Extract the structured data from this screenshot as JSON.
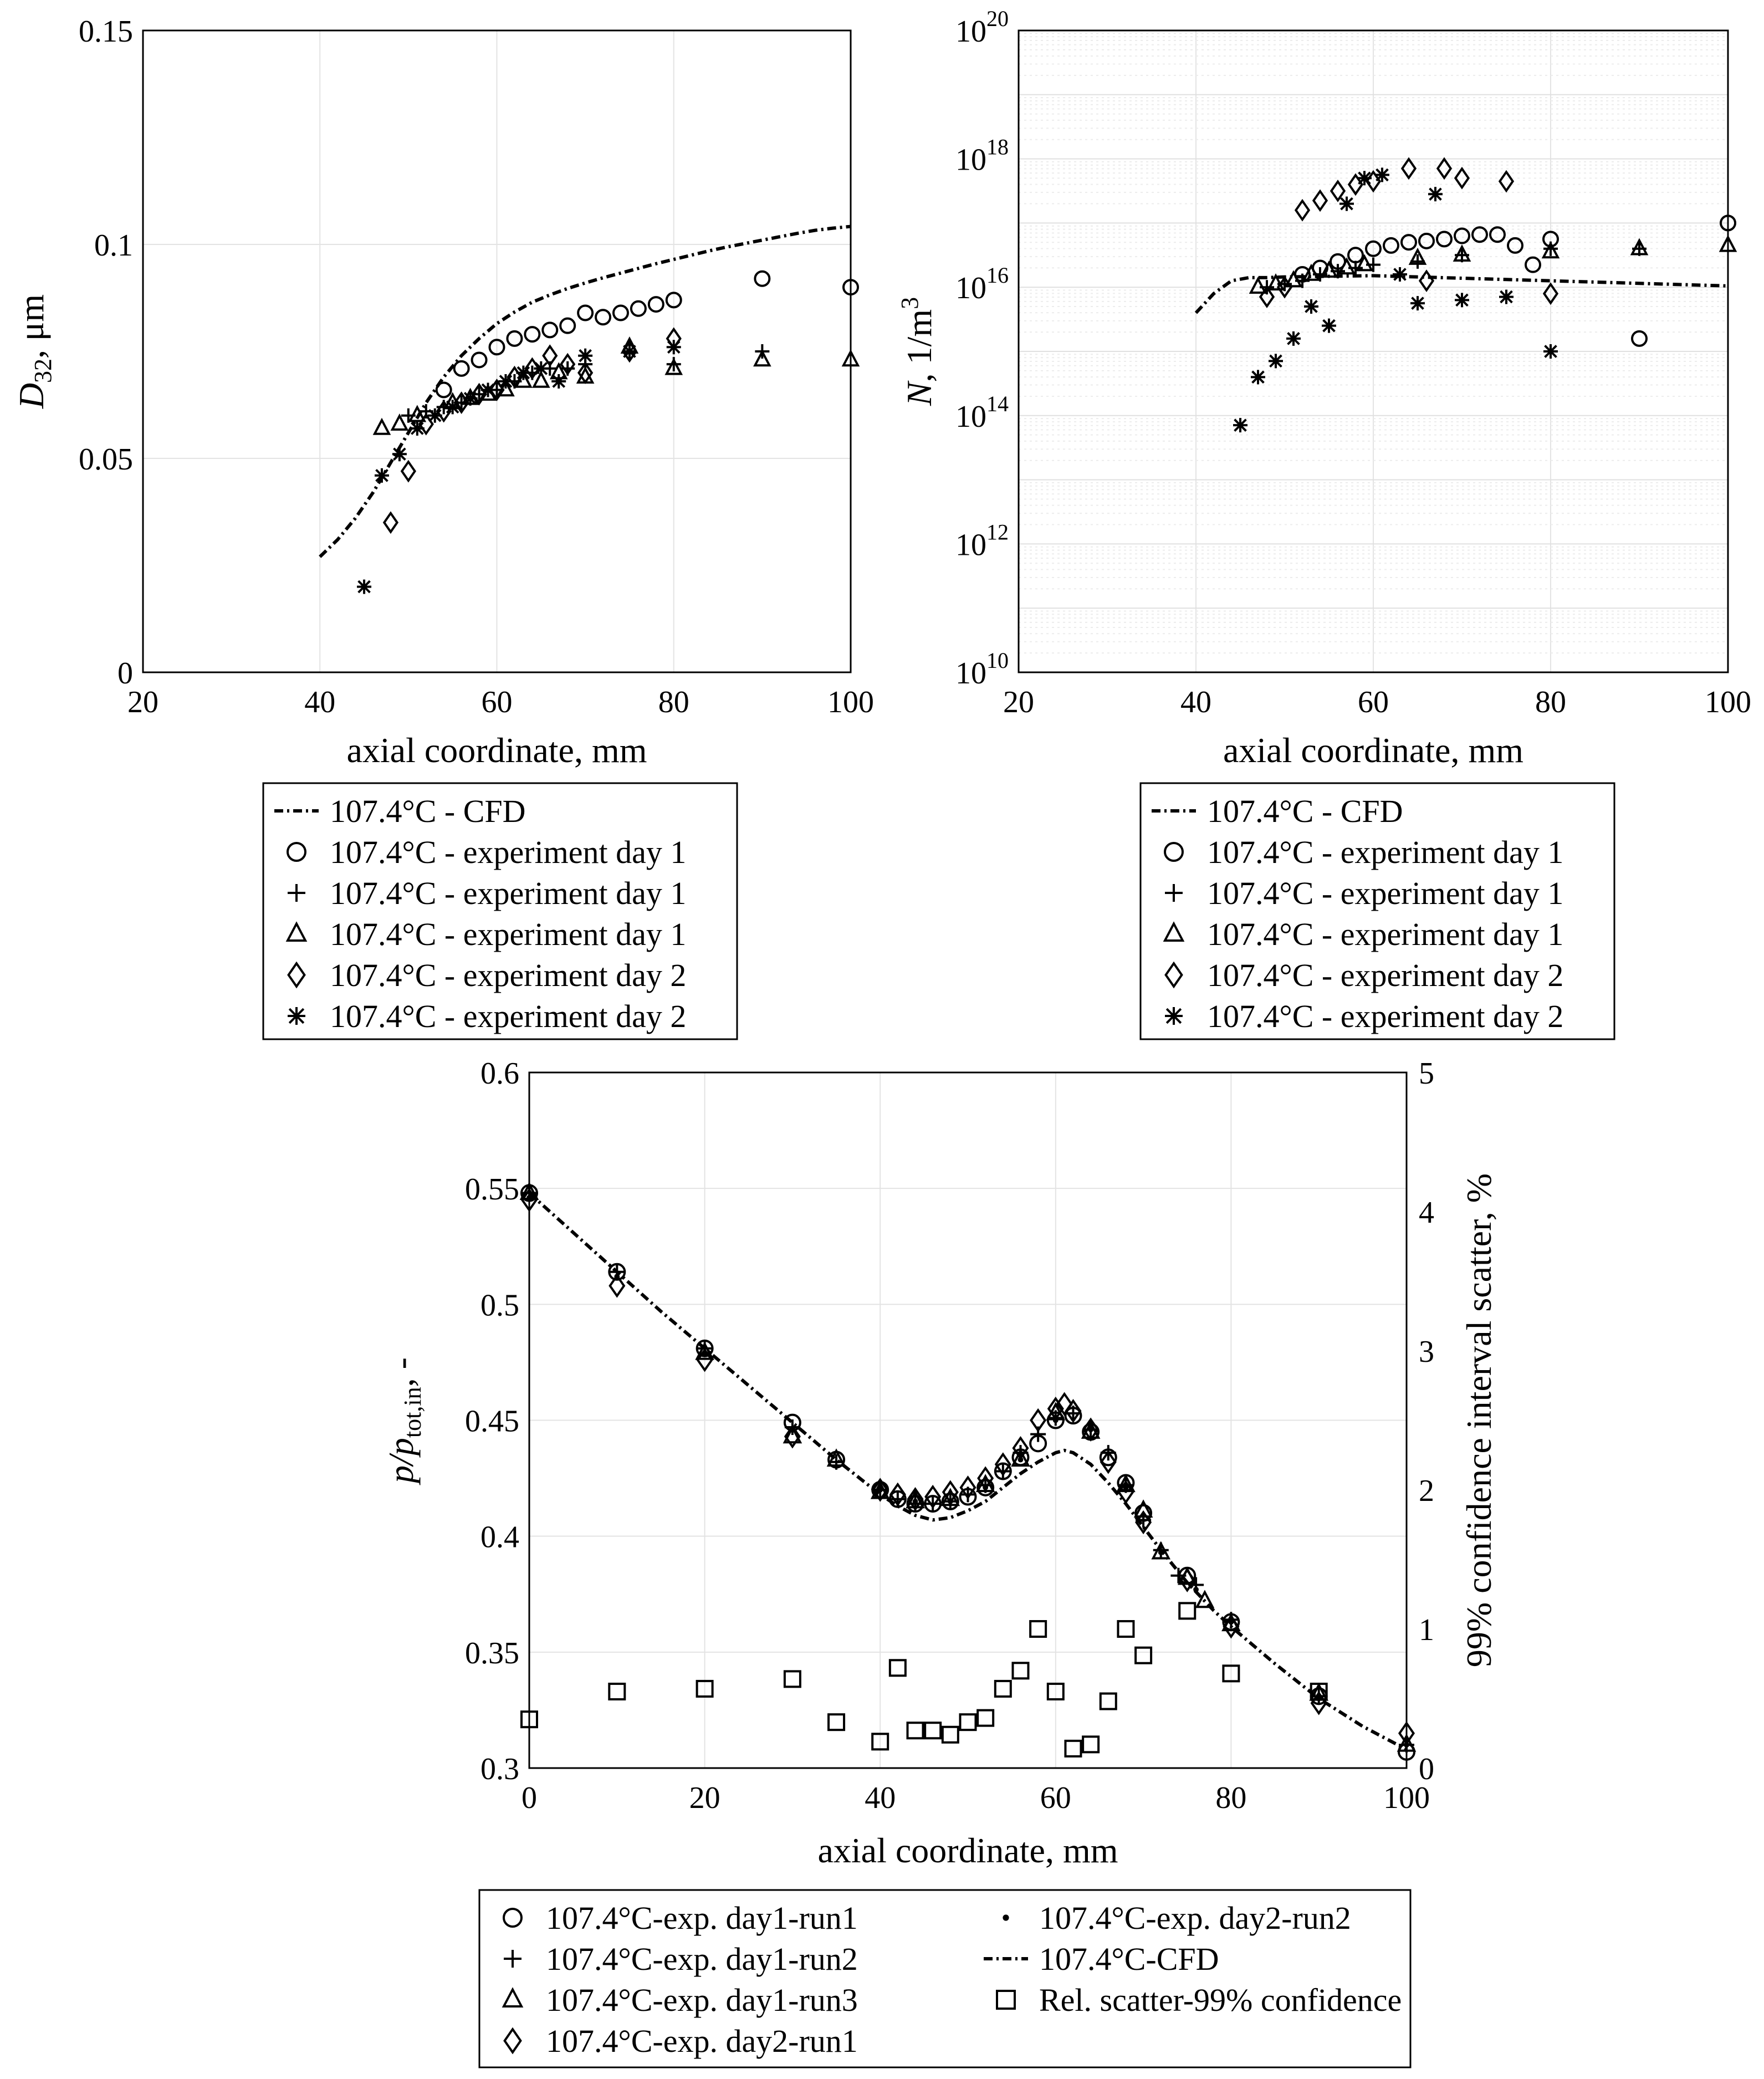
{
  "chart_data": [
    {
      "id": "d32",
      "type": "scatter",
      "ylabel_main": "D",
      "ylabel_sub": "32",
      "ylabel_rest": ", μm",
      "xlabel": "axial coordinate, mm",
      "xlim": [
        20,
        100
      ],
      "ylim": [
        0,
        0.15
      ],
      "xticks": [
        20,
        40,
        60,
        80,
        100
      ],
      "yticks": [
        0,
        0.05,
        0.1,
        0.15
      ],
      "ytick_labels": [
        "0",
        "0.05",
        "0.1",
        "0.15"
      ],
      "grid": true,
      "legend_position": "below",
      "series": [
        {
          "name": "107.4°C - CFD",
          "marker": "line",
          "x": [
            40,
            42,
            44,
            46,
            48,
            50,
            52,
            54,
            56,
            58,
            60,
            62,
            64,
            66,
            68,
            70,
            72,
            74,
            76,
            78,
            80,
            82,
            84,
            86,
            88,
            90,
            92,
            94,
            96,
            98,
            100
          ],
          "y": [
            0.027,
            0.031,
            0.036,
            0.042,
            0.049,
            0.056,
            0.063,
            0.069,
            0.074,
            0.078,
            0.0815,
            0.0842,
            0.0865,
            0.0882,
            0.0897,
            0.091,
            0.0922,
            0.0933,
            0.0944,
            0.0955,
            0.0965,
            0.0975,
            0.0985,
            0.0994,
            0.1002,
            0.101,
            0.1018,
            0.1026,
            0.1033,
            0.1038,
            0.1042
          ]
        },
        {
          "name": "107.4°C - experiment day 1",
          "marker": "circle",
          "x": [
            54,
            56,
            58,
            60,
            62,
            64,
            66,
            68,
            70,
            72,
            74,
            76,
            78,
            80,
            90,
            100
          ],
          "y": [
            0.066,
            0.071,
            0.073,
            0.076,
            0.078,
            0.079,
            0.08,
            0.081,
            0.084,
            0.083,
            0.084,
            0.085,
            0.086,
            0.087,
            0.092,
            0.09
          ]
        },
        {
          "name": "107.4°C - experiment day 1",
          "marker": "plus",
          "x": [
            50,
            52,
            54,
            56,
            58,
            60,
            62,
            64,
            66,
            68,
            70,
            75,
            80,
            90
          ],
          "y": [
            0.06,
            0.061,
            0.062,
            0.063,
            0.065,
            0.066,
            0.068,
            0.07,
            0.071,
            0.071,
            0.072,
            0.075,
            0.072,
            0.075
          ]
        },
        {
          "name": "107.4°C - experiment day 1",
          "marker": "triangle",
          "x": [
            47,
            49,
            51,
            55,
            57,
            59,
            61,
            63,
            65,
            67,
            70,
            75,
            80,
            90,
            100
          ],
          "y": [
            0.057,
            0.058,
            0.06,
            0.063,
            0.064,
            0.065,
            0.066,
            0.068,
            0.068,
            0.07,
            0.069,
            0.076,
            0.071,
            0.073,
            0.073
          ]
        },
        {
          "name": "107.4°C - experiment day 2",
          "marker": "diamond",
          "x": [
            48,
            50,
            52,
            54,
            56,
            58,
            60,
            62,
            64,
            66,
            68,
            70,
            75,
            80
          ],
          "y": [
            0.035,
            0.047,
            0.058,
            0.061,
            0.063,
            0.065,
            0.066,
            0.069,
            0.071,
            0.074,
            0.072,
            0.07,
            0.075,
            0.078
          ]
        },
        {
          "name": "107.4°C - experiment day 2",
          "marker": "star",
          "x": [
            45,
            47,
            49,
            51,
            53,
            55,
            57,
            59,
            61,
            63,
            65,
            67,
            70,
            75,
            80
          ],
          "y": [
            0.02,
            0.046,
            0.051,
            0.057,
            0.06,
            0.062,
            0.064,
            0.066,
            0.068,
            0.07,
            0.071,
            0.068,
            0.074,
            0.075,
            0.076
          ]
        }
      ]
    },
    {
      "id": "number_density",
      "type": "scatter",
      "yscale": "log",
      "ylabel_main": "N",
      "ylabel_rest": ", 1/m",
      "ylabel_sup": "3",
      "xlabel": "axial coordinate, mm",
      "xlim": [
        20,
        100
      ],
      "ylim_exp10": [
        10,
        20
      ],
      "xticks": [
        20,
        40,
        60,
        80,
        100
      ],
      "ytick_exponents": [
        10,
        12,
        14,
        16,
        18,
        20
      ],
      "grid": true,
      "legend_position": "below",
      "series": [
        {
          "name": "107.4°C - CFD",
          "marker": "line",
          "x": [
            40,
            42,
            44,
            46,
            48,
            50,
            55,
            60,
            65,
            70,
            75,
            80,
            85,
            90,
            95,
            100
          ],
          "log10y": [
            15.6,
            15.9,
            16.1,
            16.15,
            16.15,
            16.16,
            16.17,
            16.18,
            16.16,
            16.14,
            16.12,
            16.1,
            16.08,
            16.06,
            16.04,
            16.02
          ]
        },
        {
          "name": "107.4°C - experiment day 1",
          "marker": "circle",
          "x": [
            52,
            54,
            56,
            58,
            60,
            62,
            64,
            66,
            68,
            70,
            72,
            74,
            76,
            78,
            80,
            90,
            100
          ],
          "log10y": [
            16.2,
            16.3,
            16.4,
            16.5,
            16.6,
            16.65,
            16.7,
            16.72,
            16.75,
            16.8,
            16.82,
            16.82,
            16.65,
            16.35,
            16.75,
            15.2,
            17.0
          ]
        },
        {
          "name": "107.4°C - experiment day 1",
          "marker": "plus",
          "x": [
            48,
            50,
            52,
            54,
            56,
            58,
            60,
            65,
            70,
            80,
            90
          ],
          "log10y": [
            16.0,
            16.05,
            16.1,
            16.2,
            16.25,
            16.3,
            16.35,
            16.4,
            16.5,
            16.6,
            16.6
          ]
        },
        {
          "name": "107.4°C - experiment day 1",
          "marker": "triangle",
          "x": [
            47,
            49,
            51,
            53,
            55,
            57,
            59,
            65,
            70,
            80,
            90,
            100
          ],
          "log10y": [
            16.0,
            16.05,
            16.1,
            16.2,
            16.25,
            16.3,
            16.35,
            16.45,
            16.5,
            16.55,
            16.6,
            16.65
          ]
        },
        {
          "name": "107.4°C - experiment day 2",
          "marker": "diamond",
          "x": [
            48,
            50,
            52,
            54,
            56,
            58,
            60,
            64,
            66,
            68,
            70,
            75,
            80
          ],
          "log10y": [
            15.85,
            16.0,
            17.2,
            17.35,
            17.5,
            17.6,
            17.65,
            17.85,
            16.1,
            17.85,
            17.7,
            17.65,
            15.9
          ]
        },
        {
          "name": "107.4°C - experiment day 2",
          "marker": "star",
          "x": [
            45,
            47,
            49,
            51,
            53,
            55,
            57,
            59,
            61,
            63,
            65,
            67,
            70,
            75,
            80
          ],
          "log10y": [
            13.85,
            14.6,
            14.85,
            15.2,
            15.7,
            15.4,
            17.3,
            17.7,
            17.75,
            16.2,
            15.75,
            17.45,
            15.8,
            15.85,
            15.0
          ]
        }
      ]
    },
    {
      "id": "pressure",
      "type": "scatter",
      "ylabel_main": "p/p",
      "ylabel_sub": "tot,in",
      "ylabel_rest": ", -",
      "y2label": "99% confidence interval scatter, %",
      "xlabel": "axial coordinate, mm",
      "xlim": [
        0,
        100
      ],
      "ylim": [
        0.3,
        0.6
      ],
      "y2lim": [
        0,
        5
      ],
      "xticks": [
        0,
        20,
        40,
        60,
        80,
        100
      ],
      "yticks": [
        0.3,
        0.35,
        0.4,
        0.45,
        0.5,
        0.55,
        0.6
      ],
      "ytick_labels": [
        "0.3",
        "0.35",
        "0.4",
        "0.45",
        "0.5",
        "0.55",
        "0.6"
      ],
      "y2ticks": [
        0,
        1,
        2,
        3,
        4,
        5
      ],
      "grid": true,
      "legend_position": "below",
      "series": [
        {
          "name": "107.4°C-exp. day1-run1",
          "marker": "circle",
          "x": [
            0,
            10,
            20,
            30,
            35,
            40,
            42,
            44,
            46,
            48,
            50,
            52,
            54,
            56,
            58,
            60,
            62,
            64,
            66,
            68,
            70,
            75,
            80,
            90,
            100
          ],
          "y": [
            0.548,
            0.514,
            0.481,
            0.449,
            0.433,
            0.42,
            0.416,
            0.414,
            0.414,
            0.415,
            0.417,
            0.421,
            0.428,
            0.434,
            0.44,
            0.45,
            0.452,
            0.445,
            0.434,
            0.423,
            0.41,
            0.383,
            0.363,
            0.331,
            0.307
          ]
        },
        {
          "name": "107.4°C-exp. day1-run2",
          "marker": "plus",
          "x": [
            0,
            10,
            20,
            30,
            35,
            40,
            42,
            44,
            46,
            48,
            50,
            52,
            54,
            56,
            58,
            60,
            62,
            64,
            66,
            68,
            70,
            72,
            74,
            76,
            80,
            90,
            100
          ],
          "y": [
            0.548,
            0.514,
            0.481,
            0.447,
            0.432,
            0.42,
            0.416,
            0.414,
            0.414,
            0.415,
            0.418,
            0.422,
            0.428,
            0.436,
            0.444,
            0.451,
            0.453,
            0.446,
            0.436,
            0.422,
            0.407,
            0.394,
            0.383,
            0.379,
            0.364,
            0.331,
            0.31
          ]
        },
        {
          "name": "107.4°C-exp. day1-run3",
          "marker": "triangle",
          "x": [
            0,
            20,
            30,
            35,
            40,
            44,
            48,
            52,
            56,
            60,
            64,
            68,
            70,
            72,
            75,
            77,
            80,
            90,
            100
          ],
          "y": [
            0.548,
            0.479,
            0.443,
            0.433,
            0.419,
            0.415,
            0.416,
            0.422,
            0.433,
            0.453,
            0.445,
            0.422,
            0.411,
            0.393,
            0.382,
            0.372,
            0.362,
            0.332,
            0.31
          ]
        },
        {
          "name": "107.4°C-exp. day2-run1",
          "marker": "diamond",
          "x": [
            0,
            10,
            20,
            30,
            40,
            42,
            44,
            46,
            48,
            50,
            52,
            54,
            56,
            58,
            60,
            61,
            62,
            64,
            66,
            68,
            70,
            75,
            80,
            90,
            100
          ],
          "y": [
            0.545,
            0.508,
            0.476,
            0.443,
            0.42,
            0.418,
            0.416,
            0.417,
            0.419,
            0.421,
            0.425,
            0.431,
            0.438,
            0.45,
            0.455,
            0.457,
            0.454,
            0.446,
            0.432,
            0.419,
            0.406,
            0.381,
            0.361,
            0.328,
            0.315
          ]
        },
        {
          "name": "107.4°C-exp. day2-run2",
          "marker": "dot",
          "x": [
            0,
            10,
            20,
            30,
            40,
            44,
            48,
            52,
            56,
            60,
            64,
            68,
            72,
            76,
            80,
            90,
            100
          ],
          "y": [
            0.546,
            0.512,
            0.479,
            0.446,
            0.42,
            0.415,
            0.415,
            0.421,
            0.433,
            0.45,
            0.446,
            0.421,
            0.393,
            0.377,
            0.363,
            0.33,
            0.31
          ]
        },
        {
          "name": "107.4°C-CFD",
          "marker": "line",
          "x": [
            0,
            5,
            10,
            15,
            20,
            25,
            30,
            35,
            38,
            40,
            42,
            44,
            46,
            48,
            50,
            52,
            54,
            56,
            58,
            60,
            61,
            62,
            64,
            66,
            68,
            70,
            72,
            75,
            78,
            80,
            85,
            90,
            95,
            100
          ],
          "y": [
            0.548,
            0.531,
            0.514,
            0.497,
            0.481,
            0.465,
            0.449,
            0.433,
            0.424,
            0.418,
            0.413,
            0.409,
            0.407,
            0.408,
            0.411,
            0.415,
            0.421,
            0.427,
            0.432,
            0.436,
            0.437,
            0.436,
            0.431,
            0.423,
            0.414,
            0.404,
            0.394,
            0.38,
            0.368,
            0.361,
            0.345,
            0.33,
            0.318,
            0.308
          ]
        },
        {
          "name": "Rel. scatter-99% confidence",
          "marker": "square",
          "axis": "right",
          "x": [
            0,
            10,
            20,
            30,
            35,
            40,
            42,
            44,
            46,
            48,
            50,
            52,
            54,
            56,
            58,
            60,
            62,
            64,
            66,
            68,
            70,
            75,
            80,
            90
          ],
          "y": [
            0.35,
            0.55,
            0.57,
            0.64,
            0.33,
            0.19,
            0.72,
            0.27,
            0.27,
            0.24,
            0.33,
            0.36,
            0.57,
            0.7,
            1.0,
            0.55,
            0.14,
            0.17,
            0.48,
            1.0,
            0.81,
            1.13,
            0.68,
            0.55
          ]
        }
      ]
    }
  ]
}
